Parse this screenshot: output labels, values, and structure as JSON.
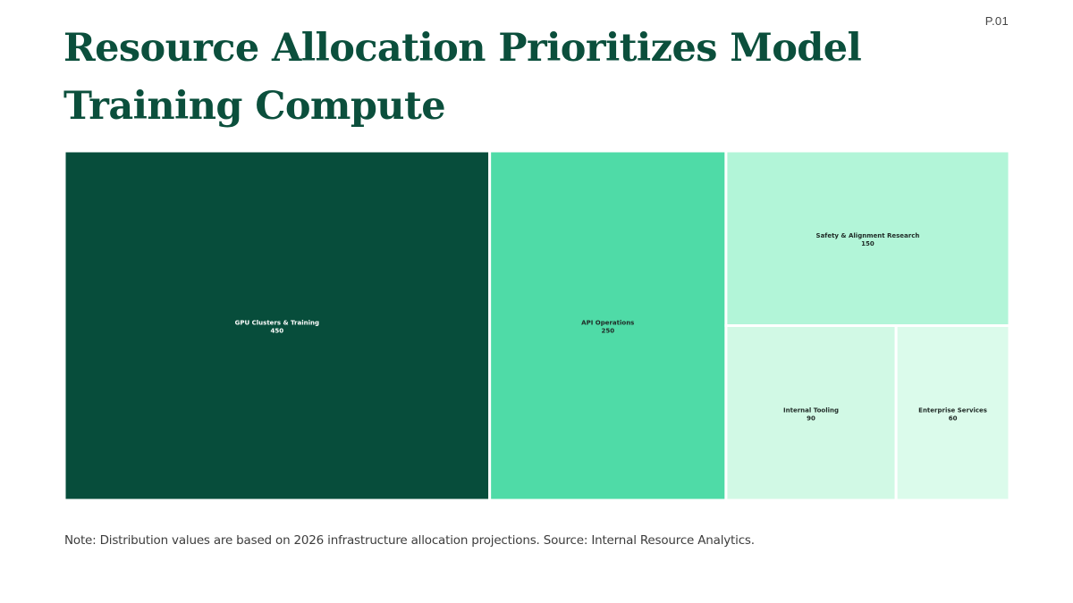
{
  "page_number": "P.01",
  "title": "Resource Allocation Prioritizes Model Training Compute",
  "note": "Note: Distribution values are based on 2026 infrastructure allocation projections. Source: Internal Resource Analytics.",
  "colors": {
    "title": "#0b4f3c",
    "tile_border": "#ffffff",
    "label_dark_tile": "#ffffff",
    "label_light_tile": "#1f2a26"
  },
  "chart_data": {
    "type": "treemap",
    "title": "",
    "items": [
      {
        "name": "GPU Clusters & Training",
        "value": 450,
        "color": "#074d3b"
      },
      {
        "name": "API Operations",
        "value": 250,
        "color": "#4fdba7"
      },
      {
        "name": "Safety & Alignment Research",
        "value": 150,
        "color": "#b2f5d8"
      },
      {
        "name": "Internal Tooling",
        "value": 90,
        "color": "#d1f9e5"
      },
      {
        "name": "Enterprise Services",
        "value": 60,
        "color": "#dbfbeb"
      }
    ]
  }
}
